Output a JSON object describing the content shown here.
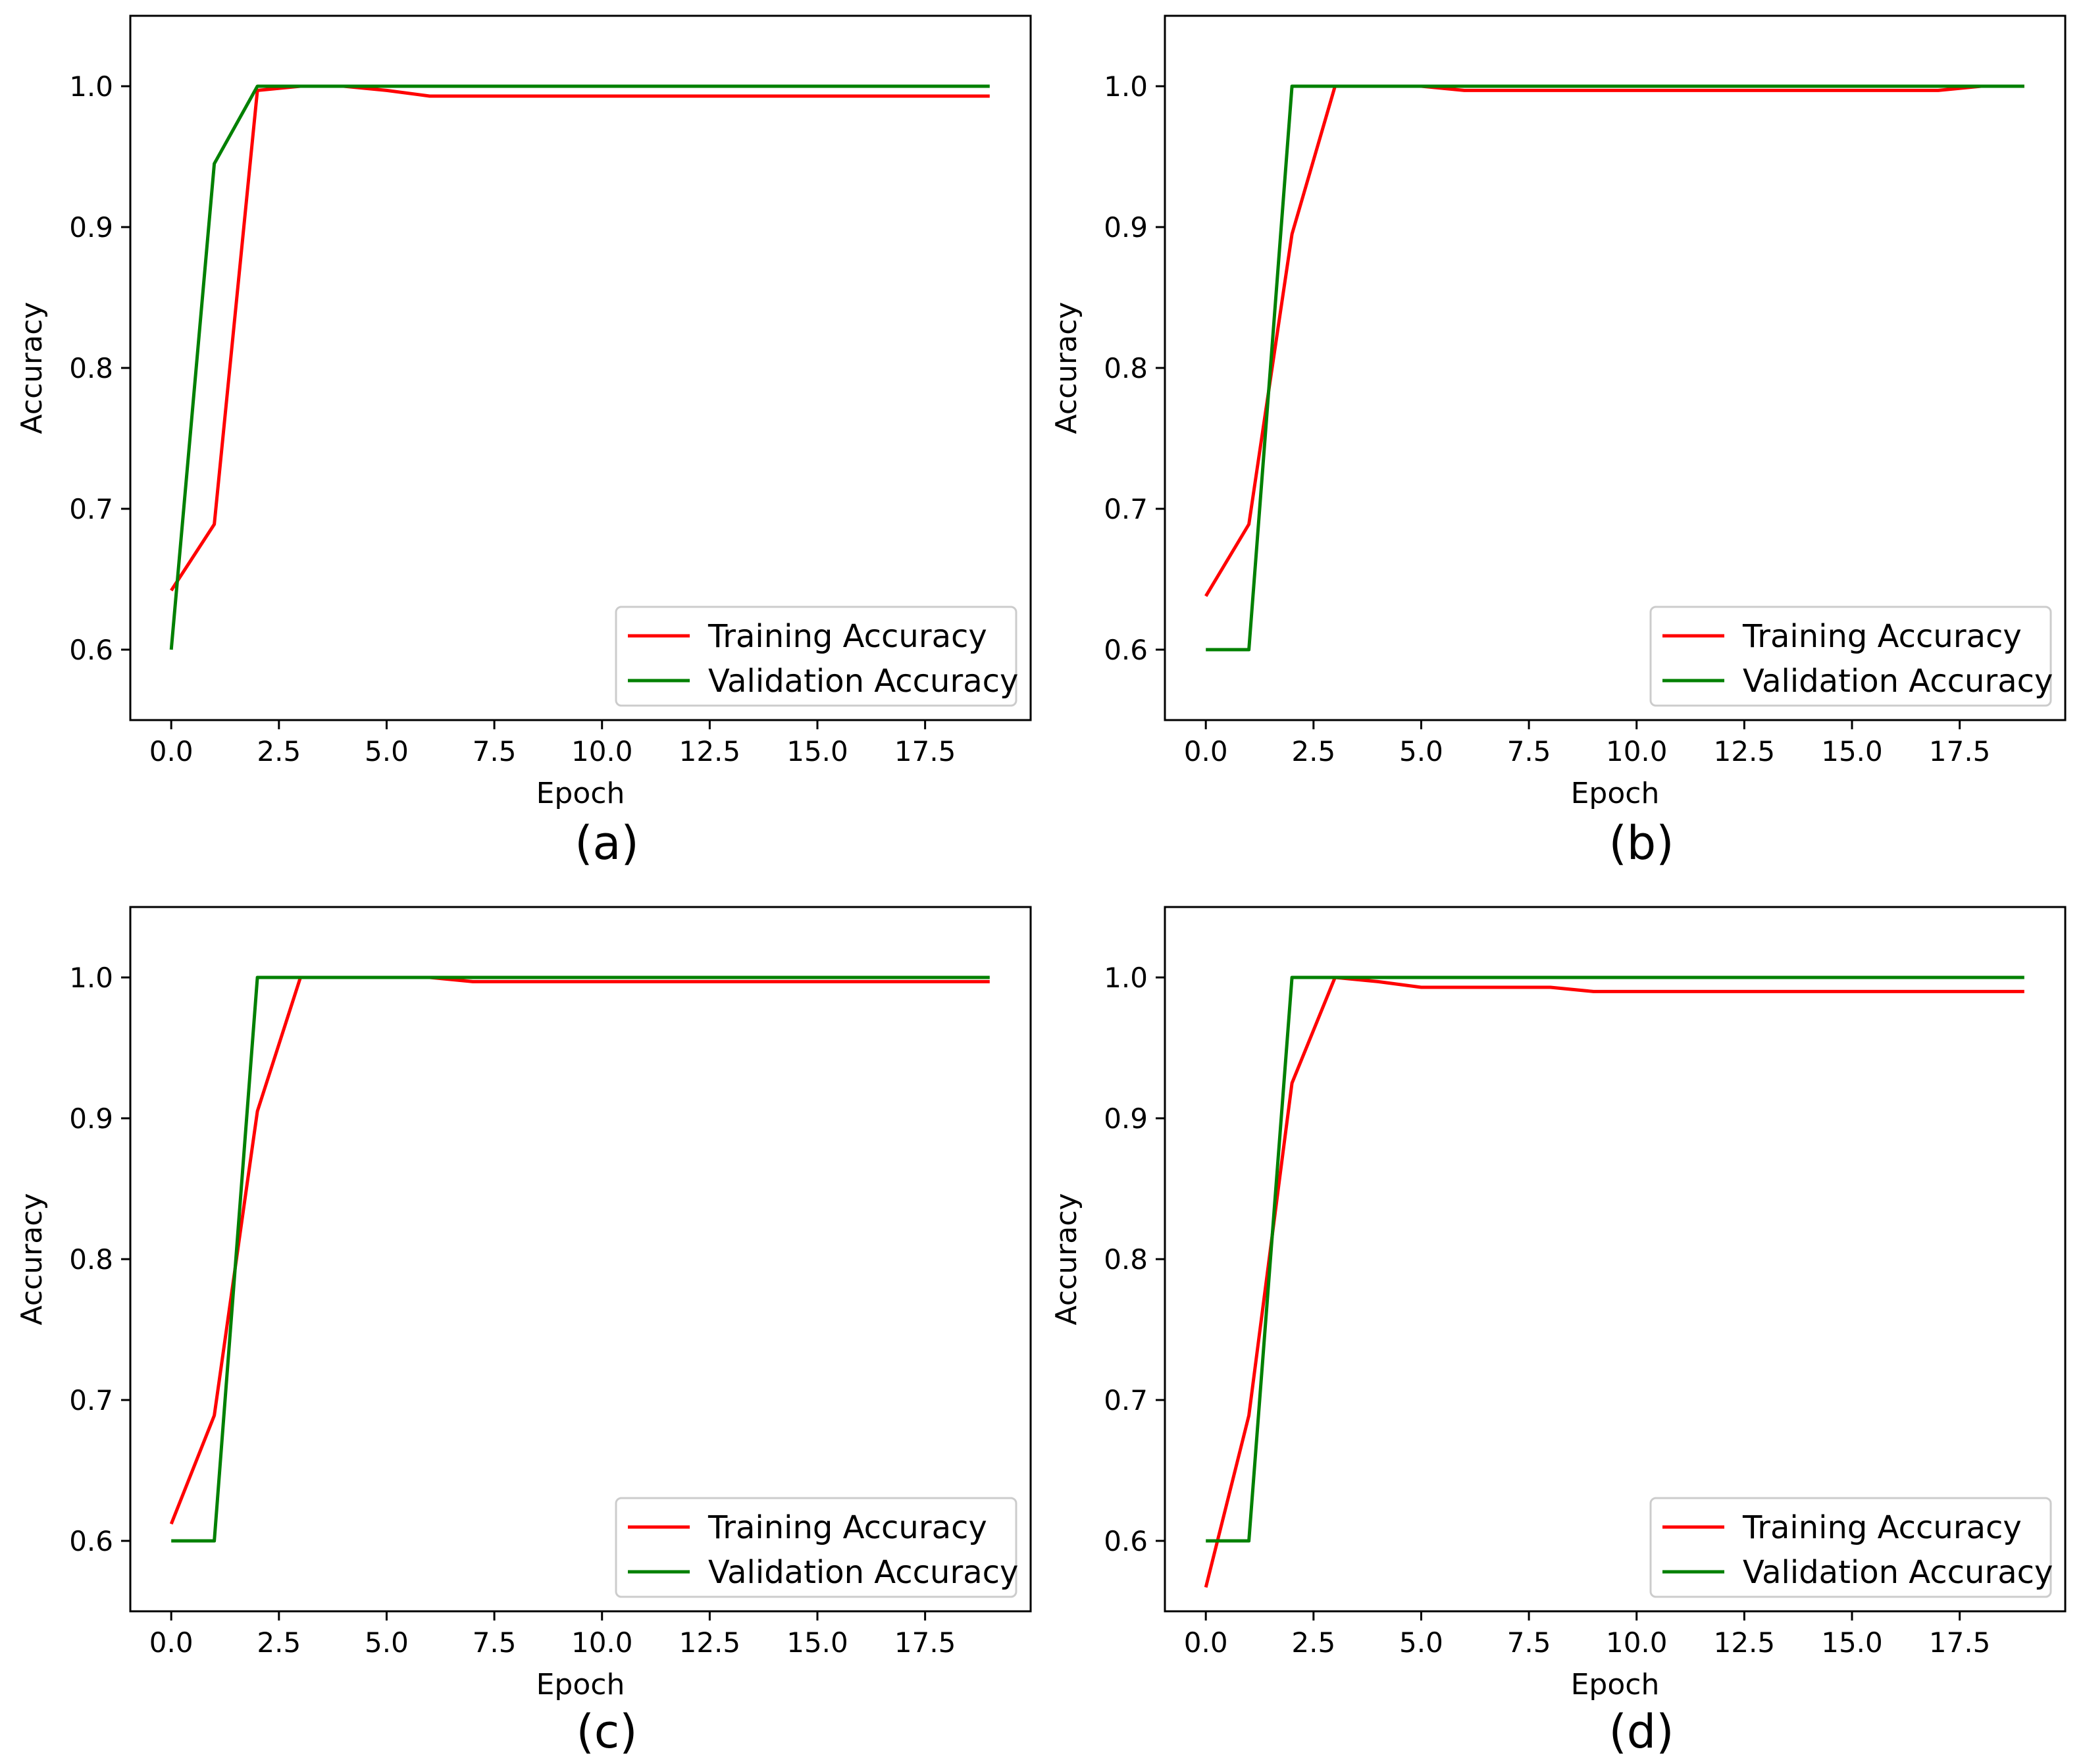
{
  "figure": {
    "colors": {
      "training": "#ff0000",
      "validation": "#008000",
      "axes": "#000000",
      "legend_border": "#cccccc"
    }
  },
  "chart_data": [
    {
      "type": "line",
      "caption": "(a)",
      "xlabel": "Epoch",
      "ylabel": "Accuracy",
      "xlim": [
        -0.95,
        19.95
      ],
      "ylim": [
        0.55,
        1.05
      ],
      "xticks": [
        0.0,
        2.5,
        5.0,
        7.5,
        10.0,
        12.5,
        15.0,
        17.5
      ],
      "xtick_labels": [
        "0.0",
        "2.5",
        "5.0",
        "7.5",
        "10.0",
        "12.5",
        "15.0",
        "17.5"
      ],
      "yticks": [
        0.6,
        0.7,
        0.8,
        0.9,
        1.0
      ],
      "ytick_labels": [
        "0.6",
        "0.7",
        "0.8",
        "0.9",
        "1.0"
      ],
      "legend_position": "lower-right",
      "x": [
        0,
        1,
        2,
        3,
        4,
        5,
        6,
        7,
        8,
        9,
        10,
        11,
        12,
        13,
        14,
        15,
        16,
        17,
        18,
        19
      ],
      "series": [
        {
          "name": "Training Accuracy",
          "color": "#ff0000",
          "values": [
            0.642,
            0.689,
            0.997,
            1.0,
            1.0,
            0.997,
            0.993,
            0.993,
            0.993,
            0.993,
            0.993,
            0.993,
            0.993,
            0.993,
            0.993,
            0.993,
            0.993,
            0.993,
            0.993,
            0.993
          ]
        },
        {
          "name": "Validation Accuracy",
          "color": "#008000",
          "values": [
            0.6,
            0.945,
            1.0,
            1.0,
            1.0,
            1.0,
            1.0,
            1.0,
            1.0,
            1.0,
            1.0,
            1.0,
            1.0,
            1.0,
            1.0,
            1.0,
            1.0,
            1.0,
            1.0,
            1.0
          ]
        }
      ]
    },
    {
      "type": "line",
      "caption": "(b)",
      "xlabel": "Epoch",
      "ylabel": "Accuracy",
      "xlim": [
        -0.95,
        19.95
      ],
      "ylim": [
        0.55,
        1.05
      ],
      "xticks": [
        0.0,
        2.5,
        5.0,
        7.5,
        10.0,
        12.5,
        15.0,
        17.5
      ],
      "xtick_labels": [
        "0.0",
        "2.5",
        "5.0",
        "7.5",
        "10.0",
        "12.5",
        "15.0",
        "17.5"
      ],
      "yticks": [
        0.6,
        0.7,
        0.8,
        0.9,
        1.0
      ],
      "ytick_labels": [
        "0.6",
        "0.7",
        "0.8",
        "0.9",
        "1.0"
      ],
      "legend_position": "lower-right",
      "x": [
        0,
        1,
        2,
        3,
        4,
        5,
        6,
        7,
        8,
        9,
        10,
        11,
        12,
        13,
        14,
        15,
        16,
        17,
        18,
        19
      ],
      "series": [
        {
          "name": "Training Accuracy",
          "color": "#ff0000",
          "values": [
            0.638,
            0.689,
            0.895,
            1.0,
            1.0,
            1.0,
            0.997,
            0.997,
            0.997,
            0.997,
            0.997,
            0.997,
            0.997,
            0.997,
            0.997,
            0.997,
            0.997,
            0.997,
            1.0,
            1.0
          ]
        },
        {
          "name": "Validation Accuracy",
          "color": "#008000",
          "values": [
            0.6,
            0.6,
            1.0,
            1.0,
            1.0,
            1.0,
            1.0,
            1.0,
            1.0,
            1.0,
            1.0,
            1.0,
            1.0,
            1.0,
            1.0,
            1.0,
            1.0,
            1.0,
            1.0,
            1.0
          ]
        }
      ]
    },
    {
      "type": "line",
      "caption": "(c)",
      "xlabel": "Epoch",
      "ylabel": "Accuracy",
      "xlim": [
        -0.95,
        19.95
      ],
      "ylim": [
        0.55,
        1.05
      ],
      "xticks": [
        0.0,
        2.5,
        5.0,
        7.5,
        10.0,
        12.5,
        15.0,
        17.5
      ],
      "xtick_labels": [
        "0.0",
        "2.5",
        "5.0",
        "7.5",
        "10.0",
        "12.5",
        "15.0",
        "17.5"
      ],
      "yticks": [
        0.6,
        0.7,
        0.8,
        0.9,
        1.0
      ],
      "ytick_labels": [
        "0.6",
        "0.7",
        "0.8",
        "0.9",
        "1.0"
      ],
      "legend_position": "lower-right",
      "x": [
        0,
        1,
        2,
        3,
        4,
        5,
        6,
        7,
        8,
        9,
        10,
        11,
        12,
        13,
        14,
        15,
        16,
        17,
        18,
        19
      ],
      "series": [
        {
          "name": "Training Accuracy",
          "color": "#ff0000",
          "values": [
            0.612,
            0.689,
            0.905,
            1.0,
            1.0,
            1.0,
            1.0,
            0.997,
            0.997,
            0.997,
            0.997,
            0.997,
            0.997,
            0.997,
            0.997,
            0.997,
            0.997,
            0.997,
            0.997,
            0.997
          ]
        },
        {
          "name": "Validation Accuracy",
          "color": "#008000",
          "values": [
            0.6,
            0.6,
            1.0,
            1.0,
            1.0,
            1.0,
            1.0,
            1.0,
            1.0,
            1.0,
            1.0,
            1.0,
            1.0,
            1.0,
            1.0,
            1.0,
            1.0,
            1.0,
            1.0,
            1.0
          ]
        }
      ]
    },
    {
      "type": "line",
      "caption": "(d)",
      "xlabel": "Epoch",
      "ylabel": "Accuracy",
      "xlim": [
        -0.95,
        19.95
      ],
      "ylim": [
        0.55,
        1.05
      ],
      "xticks": [
        0.0,
        2.5,
        5.0,
        7.5,
        10.0,
        12.5,
        15.0,
        17.5
      ],
      "xtick_labels": [
        "0.0",
        "2.5",
        "5.0",
        "7.5",
        "10.0",
        "12.5",
        "15.0",
        "17.5"
      ],
      "yticks": [
        0.6,
        0.7,
        0.8,
        0.9,
        1.0
      ],
      "ytick_labels": [
        "0.6",
        "0.7",
        "0.8",
        "0.9",
        "1.0"
      ],
      "legend_position": "lower-right",
      "x": [
        0,
        1,
        2,
        3,
        4,
        5,
        6,
        7,
        8,
        9,
        10,
        11,
        12,
        13,
        14,
        15,
        16,
        17,
        18,
        19
      ],
      "series": [
        {
          "name": "Training Accuracy",
          "color": "#ff0000",
          "values": [
            0.567,
            0.689,
            0.925,
            1.0,
            0.997,
            0.993,
            0.993,
            0.993,
            0.993,
            0.99,
            0.99,
            0.99,
            0.99,
            0.99,
            0.99,
            0.99,
            0.99,
            0.99,
            0.99,
            0.99
          ]
        },
        {
          "name": "Validation Accuracy",
          "color": "#008000",
          "values": [
            0.6,
            0.6,
            1.0,
            1.0,
            1.0,
            1.0,
            1.0,
            1.0,
            1.0,
            1.0,
            1.0,
            1.0,
            1.0,
            1.0,
            1.0,
            1.0,
            1.0,
            1.0,
            1.0,
            1.0
          ]
        }
      ]
    }
  ]
}
